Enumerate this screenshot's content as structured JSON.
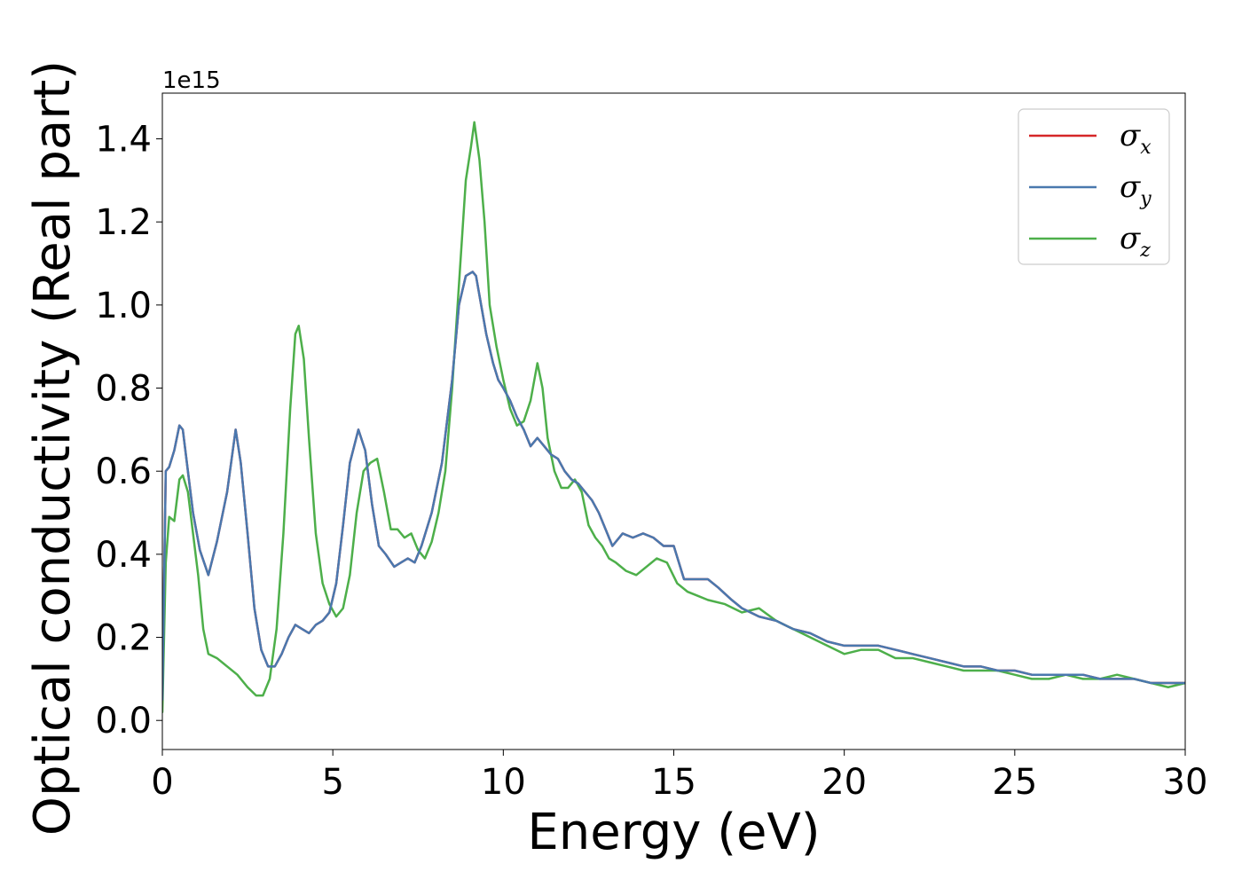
{
  "chart_data": {
    "type": "line",
    "title": "",
    "xlabel": "Energy (eV)",
    "ylabel": "Optical conductivity (Real part)",
    "y_offset_label": "1e15",
    "xlim": [
      0,
      30
    ],
    "ylim": [
      -0.07,
      1.51
    ],
    "x_ticks": [
      "0",
      "5",
      "10",
      "15",
      "20",
      "25",
      "30"
    ],
    "y_ticks": [
      "0.0",
      "0.2",
      "0.4",
      "0.6",
      "0.8",
      "1.0",
      "1.2",
      "1.4"
    ],
    "grid": false,
    "legend_position": "top-right",
    "series": [
      {
        "name": "σx",
        "symbol": "σ",
        "subscript": "x",
        "color": "#d62728",
        "x": [
          0,
          0.1,
          0.2,
          0.35,
          0.5,
          0.6,
          0.75,
          0.9,
          1.1,
          1.35,
          1.6,
          1.9,
          2.15,
          2.3,
          2.5,
          2.7,
          2.9,
          3.1,
          3.3,
          3.5,
          3.7,
          3.9,
          4.1,
          4.3,
          4.5,
          4.7,
          4.9,
          5.1,
          5.3,
          5.5,
          5.75,
          5.95,
          6.15,
          6.35,
          6.55,
          6.8,
          7.0,
          7.2,
          7.4,
          7.6,
          7.9,
          8.2,
          8.5,
          8.7,
          8.9,
          9.1,
          9.2,
          9.35,
          9.5,
          9.7,
          9.85,
          10.0,
          10.2,
          10.4,
          10.6,
          10.8,
          11.0,
          11.2,
          11.4,
          11.6,
          11.8,
          12.0,
          12.2,
          12.4,
          12.6,
          12.8,
          13.0,
          13.2,
          13.5,
          13.8,
          14.1,
          14.4,
          14.7,
          15.0,
          15.3,
          15.7,
          16.0,
          16.3,
          16.7,
          17.0,
          17.5,
          18.0,
          18.5,
          19.0,
          19.5,
          20.0,
          20.5,
          21.0,
          21.5,
          22.0,
          22.5,
          23.0,
          23.5,
          24.0,
          24.5,
          25.0,
          25.5,
          26.0,
          26.5,
          27.0,
          27.5,
          28.0,
          28.5,
          29.0,
          29.5,
          30.0
        ],
        "y": [
          0.05,
          0.6,
          0.61,
          0.65,
          0.71,
          0.7,
          0.6,
          0.5,
          0.41,
          0.35,
          0.43,
          0.55,
          0.7,
          0.62,
          0.45,
          0.27,
          0.17,
          0.13,
          0.13,
          0.16,
          0.2,
          0.23,
          0.22,
          0.21,
          0.23,
          0.24,
          0.26,
          0.33,
          0.47,
          0.62,
          0.7,
          0.65,
          0.52,
          0.42,
          0.4,
          0.37,
          0.38,
          0.39,
          0.38,
          0.42,
          0.5,
          0.62,
          0.82,
          1.0,
          1.07,
          1.08,
          1.07,
          1.0,
          0.93,
          0.86,
          0.82,
          0.8,
          0.77,
          0.73,
          0.7,
          0.66,
          0.68,
          0.66,
          0.64,
          0.63,
          0.6,
          0.58,
          0.57,
          0.55,
          0.53,
          0.5,
          0.46,
          0.42,
          0.45,
          0.44,
          0.45,
          0.44,
          0.42,
          0.42,
          0.34,
          0.34,
          0.34,
          0.32,
          0.29,
          0.27,
          0.25,
          0.24,
          0.22,
          0.21,
          0.19,
          0.18,
          0.18,
          0.18,
          0.17,
          0.16,
          0.15,
          0.14,
          0.13,
          0.13,
          0.12,
          0.12,
          0.11,
          0.11,
          0.11,
          0.11,
          0.1,
          0.1,
          0.1,
          0.09,
          0.09,
          0.09
        ]
      },
      {
        "name": "σy",
        "symbol": "σ",
        "subscript": "y",
        "color": "#4a78ae",
        "x": [
          0,
          0.1,
          0.2,
          0.35,
          0.5,
          0.6,
          0.75,
          0.9,
          1.1,
          1.35,
          1.6,
          1.9,
          2.15,
          2.3,
          2.5,
          2.7,
          2.9,
          3.1,
          3.3,
          3.5,
          3.7,
          3.9,
          4.1,
          4.3,
          4.5,
          4.7,
          4.9,
          5.1,
          5.3,
          5.5,
          5.75,
          5.95,
          6.15,
          6.35,
          6.55,
          6.8,
          7.0,
          7.2,
          7.4,
          7.6,
          7.9,
          8.2,
          8.5,
          8.7,
          8.9,
          9.1,
          9.2,
          9.35,
          9.5,
          9.7,
          9.85,
          10.0,
          10.2,
          10.4,
          10.6,
          10.8,
          11.0,
          11.2,
          11.4,
          11.6,
          11.8,
          12.0,
          12.2,
          12.4,
          12.6,
          12.8,
          13.0,
          13.2,
          13.5,
          13.8,
          14.1,
          14.4,
          14.7,
          15.0,
          15.3,
          15.7,
          16.0,
          16.3,
          16.7,
          17.0,
          17.5,
          18.0,
          18.5,
          19.0,
          19.5,
          20.0,
          20.5,
          21.0,
          21.5,
          22.0,
          22.5,
          23.0,
          23.5,
          24.0,
          24.5,
          25.0,
          25.5,
          26.0,
          26.5,
          27.0,
          27.5,
          28.0,
          28.5,
          29.0,
          29.5,
          30.0
        ],
        "y": [
          0.05,
          0.6,
          0.61,
          0.65,
          0.71,
          0.7,
          0.6,
          0.5,
          0.41,
          0.35,
          0.43,
          0.55,
          0.7,
          0.62,
          0.45,
          0.27,
          0.17,
          0.13,
          0.13,
          0.16,
          0.2,
          0.23,
          0.22,
          0.21,
          0.23,
          0.24,
          0.26,
          0.33,
          0.47,
          0.62,
          0.7,
          0.65,
          0.52,
          0.42,
          0.4,
          0.37,
          0.38,
          0.39,
          0.38,
          0.42,
          0.5,
          0.62,
          0.82,
          1.0,
          1.07,
          1.08,
          1.07,
          1.0,
          0.93,
          0.86,
          0.82,
          0.8,
          0.77,
          0.73,
          0.7,
          0.66,
          0.68,
          0.66,
          0.64,
          0.63,
          0.6,
          0.58,
          0.57,
          0.55,
          0.53,
          0.5,
          0.46,
          0.42,
          0.45,
          0.44,
          0.45,
          0.44,
          0.42,
          0.42,
          0.34,
          0.34,
          0.34,
          0.32,
          0.29,
          0.27,
          0.25,
          0.24,
          0.22,
          0.21,
          0.19,
          0.18,
          0.18,
          0.18,
          0.17,
          0.16,
          0.15,
          0.14,
          0.13,
          0.13,
          0.12,
          0.12,
          0.11,
          0.11,
          0.11,
          0.11,
          0.1,
          0.1,
          0.1,
          0.09,
          0.09,
          0.09
        ]
      },
      {
        "name": "σz",
        "symbol": "σ",
        "subscript": "z",
        "color": "#4daf4a",
        "x": [
          0,
          0.1,
          0.2,
          0.35,
          0.5,
          0.6,
          0.75,
          0.9,
          1.05,
          1.2,
          1.35,
          1.6,
          1.9,
          2.2,
          2.5,
          2.75,
          2.95,
          3.15,
          3.35,
          3.55,
          3.75,
          3.9,
          4.0,
          4.15,
          4.3,
          4.5,
          4.7,
          4.9,
          5.1,
          5.3,
          5.5,
          5.7,
          5.9,
          6.1,
          6.3,
          6.5,
          6.7,
          6.9,
          7.1,
          7.3,
          7.5,
          7.7,
          7.9,
          8.1,
          8.3,
          8.5,
          8.7,
          8.9,
          9.05,
          9.15,
          9.3,
          9.45,
          9.6,
          9.8,
          10.0,
          10.2,
          10.4,
          10.6,
          10.8,
          11.0,
          11.15,
          11.3,
          11.5,
          11.7,
          11.9,
          12.1,
          12.3,
          12.5,
          12.7,
          12.9,
          13.1,
          13.3,
          13.6,
          13.9,
          14.2,
          14.5,
          14.8,
          15.1,
          15.4,
          15.7,
          16.0,
          16.5,
          17.0,
          17.5,
          18.0,
          18.5,
          19.0,
          19.5,
          20.0,
          20.5,
          21.0,
          21.5,
          22.0,
          22.5,
          23.0,
          23.5,
          24.0,
          24.5,
          25.0,
          25.5,
          26.0,
          26.5,
          27.0,
          27.5,
          28.0,
          28.5,
          29.0,
          29.5,
          30.0
        ],
        "y": [
          0.02,
          0.38,
          0.49,
          0.48,
          0.58,
          0.59,
          0.55,
          0.45,
          0.35,
          0.22,
          0.16,
          0.15,
          0.13,
          0.11,
          0.08,
          0.06,
          0.06,
          0.1,
          0.22,
          0.45,
          0.75,
          0.93,
          0.95,
          0.87,
          0.68,
          0.45,
          0.33,
          0.28,
          0.25,
          0.27,
          0.35,
          0.5,
          0.6,
          0.62,
          0.63,
          0.55,
          0.46,
          0.46,
          0.44,
          0.45,
          0.41,
          0.39,
          0.43,
          0.5,
          0.6,
          0.8,
          1.05,
          1.3,
          1.38,
          1.44,
          1.35,
          1.2,
          1.0,
          0.9,
          0.82,
          0.75,
          0.71,
          0.72,
          0.77,
          0.86,
          0.8,
          0.68,
          0.6,
          0.56,
          0.56,
          0.58,
          0.55,
          0.47,
          0.44,
          0.42,
          0.39,
          0.38,
          0.36,
          0.35,
          0.37,
          0.39,
          0.38,
          0.33,
          0.31,
          0.3,
          0.29,
          0.28,
          0.26,
          0.27,
          0.24,
          0.22,
          0.2,
          0.18,
          0.16,
          0.17,
          0.17,
          0.15,
          0.15,
          0.14,
          0.13,
          0.12,
          0.12,
          0.12,
          0.11,
          0.1,
          0.1,
          0.11,
          0.1,
          0.1,
          0.11,
          0.1,
          0.09,
          0.08,
          0.09
        ]
      }
    ]
  }
}
